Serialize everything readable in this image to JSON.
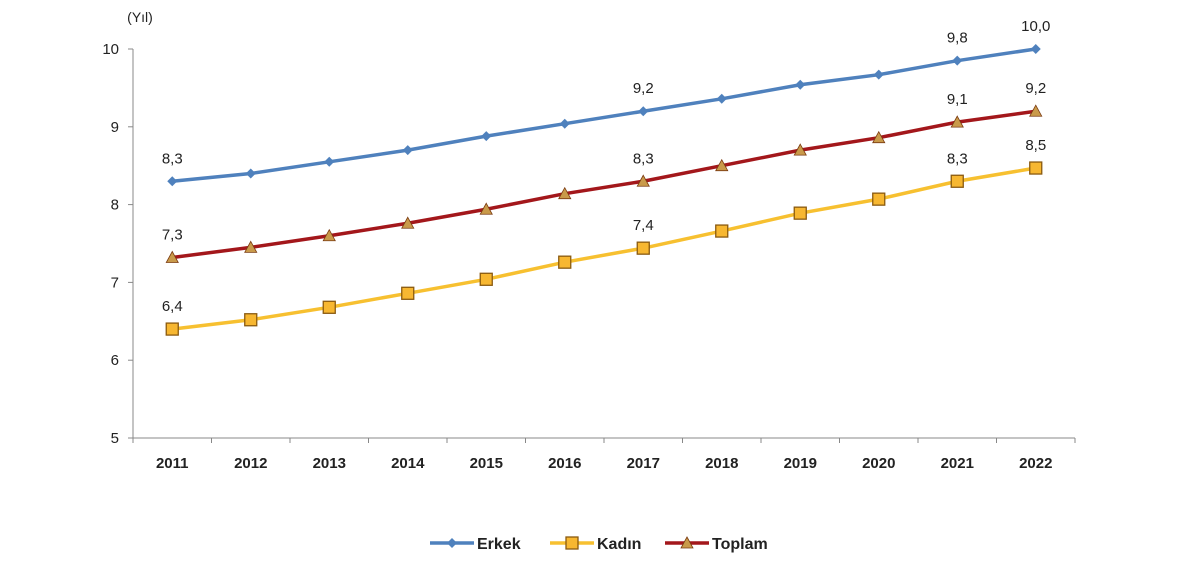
{
  "chart_data": {
    "type": "line",
    "title": "",
    "ylabel": "(Yıl)",
    "xlabel": "",
    "ylim": [
      5,
      10
    ],
    "yticks": [
      "5",
      "6",
      "7",
      "8",
      "9",
      "10"
    ],
    "categories": [
      "2011",
      "2012",
      "2013",
      "2014",
      "2015",
      "2016",
      "2017",
      "2018",
      "2019",
      "2020",
      "2021",
      "2022"
    ],
    "legend_position": "bottom",
    "grid": false,
    "series": [
      {
        "name": "Erkek",
        "color": "#4f81bd",
        "marker": "diamond",
        "values": [
          8.3,
          8.4,
          8.55,
          8.7,
          8.88,
          9.04,
          9.2,
          9.36,
          9.54,
          9.67,
          9.85,
          10.0
        ],
        "labels": [
          "8,3",
          null,
          null,
          null,
          null,
          null,
          "9,2",
          null,
          null,
          null,
          "9,8",
          "10,0"
        ]
      },
      {
        "name": "Kadın",
        "color": "#f7c030",
        "marker": "square",
        "values": [
          6.4,
          6.52,
          6.68,
          6.86,
          7.04,
          7.26,
          7.44,
          7.66,
          7.89,
          8.07,
          8.3,
          8.47
        ],
        "labels": [
          "6,4",
          null,
          null,
          null,
          null,
          null,
          "7,4",
          null,
          null,
          null,
          "8,3",
          "8,5"
        ]
      },
      {
        "name": "Toplam",
        "color": "#a3171b",
        "marker": "triangle",
        "values": [
          7.32,
          7.45,
          7.6,
          7.76,
          7.94,
          8.14,
          8.3,
          8.5,
          8.7,
          8.86,
          9.06,
          9.2
        ],
        "labels": [
          "7,3",
          null,
          null,
          null,
          null,
          null,
          "8,3",
          null,
          null,
          null,
          "9,1",
          "9,2"
        ]
      }
    ]
  }
}
